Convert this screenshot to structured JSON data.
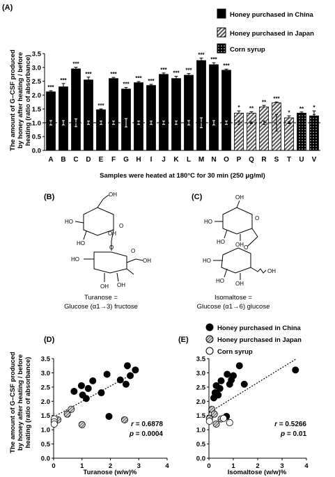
{
  "panels": {
    "a": "(A)",
    "b": "(B)",
    "c": "(C)",
    "d": "(D)",
    "e": "(E)"
  },
  "ylabel_lines": [
    "The amount of G–CSF produced",
    "by honey after heating  / before",
    "heating (ratio of absorbance)"
  ],
  "legend": {
    "china": "Honey purchased in China",
    "japan": "Honey purchased in Japan",
    "corn": "Corn syrup"
  },
  "colors": {
    "china": "#000000",
    "japan": "#c8c8c8",
    "corn": "#ffffff"
  },
  "structures": {
    "turanose_lines": [
      "Turanose =",
      "Glucose (α1→3) fructose"
    ],
    "isomaltose_lines": [
      "Isomaltose =",
      "Glucose (α1→6) glucose"
    ]
  },
  "chart_data": [
    {
      "type": "bar",
      "xlabel": "Samples were heated at 180°C for 30 min (250 μg/ml)",
      "ylabel": "The amount of G–CSF produced by honey after heating  / before heating (ratio of absorbance)",
      "ylim": [
        0,
        3.5
      ],
      "yticks": [
        "0.0",
        "0.5",
        "1.0",
        "1.5",
        "2.0",
        "2.5",
        "3.0",
        "3.5"
      ],
      "reference_line": 1.0,
      "categories": [
        "A",
        "B",
        "C",
        "D",
        "E",
        "F",
        "G",
        "H",
        "I",
        "J",
        "K",
        "L",
        "M",
        "N",
        "O",
        "P",
        "Q",
        "R",
        "S",
        "T",
        "U",
        "V"
      ],
      "groups": [
        "china",
        "china",
        "china",
        "china",
        "china",
        "china",
        "china",
        "china",
        "china",
        "china",
        "china",
        "china",
        "china",
        "china",
        "china",
        "japan",
        "japan",
        "japan",
        "japan",
        "japan",
        "corn",
        "corn"
      ],
      "values": [
        2.12,
        2.3,
        2.95,
        2.55,
        1.47,
        2.6,
        2.22,
        2.45,
        2.35,
        2.75,
        2.6,
        2.72,
        3.25,
        3.1,
        2.9,
        1.35,
        1.35,
        1.57,
        1.72,
        1.18,
        1.35,
        1.25
      ],
      "errors": [
        0.04,
        0.12,
        0.06,
        0.1,
        0.03,
        0.04,
        0.06,
        0.04,
        0.04,
        0.05,
        0.08,
        0.06,
        0.09,
        0.07,
        0.04,
        0.08,
        0.05,
        0.06,
        0.03,
        0.07,
        0.04,
        0.18
      ],
      "control_errors": [
        0.08,
        0.08,
        0.14,
        0.06,
        0.06,
        0.06,
        0.15,
        0.06,
        0.06,
        0.06,
        0.06,
        0.08,
        0.18,
        0.08,
        0.06,
        0.06,
        0.03,
        0.06,
        0.3,
        0.03,
        0.28,
        0.3
      ],
      "significance": [
        "***",
        "***",
        "***",
        "***",
        "***",
        "***",
        "***",
        "***",
        "***",
        "***",
        "***",
        "***",
        "***",
        "***",
        "***",
        "*",
        "**",
        "**",
        "***",
        "*",
        "**",
        "*"
      ]
    },
    {
      "type": "scatter",
      "xlabel": "Turanose (w/w)%",
      "xlim": [
        0,
        4
      ],
      "ylim": [
        0,
        3.5
      ],
      "xticks": [
        "0",
        "1",
        "2",
        "3",
        "4"
      ],
      "yticks": [
        "0.0",
        "0.5",
        "1.0",
        "1.5",
        "2.0",
        "2.5",
        "3.0",
        "3.5"
      ],
      "stats": {
        "r_label": "r",
        "r_value": " = 0.6878",
        "p_label": "p",
        "p_value": " = 0.0004"
      },
      "points": [
        {
          "x": 0.72,
          "y": 2.35,
          "group": "china"
        },
        {
          "x": 0.98,
          "y": 2.55,
          "group": "china"
        },
        {
          "x": 1.02,
          "y": 2.22,
          "group": "china"
        },
        {
          "x": 1.15,
          "y": 2.1,
          "group": "china"
        },
        {
          "x": 1.22,
          "y": 2.45,
          "group": "china"
        },
        {
          "x": 1.38,
          "y": 2.72,
          "group": "china"
        },
        {
          "x": 1.68,
          "y": 2.3,
          "group": "china"
        },
        {
          "x": 1.88,
          "y": 2.95,
          "group": "china"
        },
        {
          "x": 1.95,
          "y": 1.47,
          "group": "china"
        },
        {
          "x": 2.35,
          "y": 2.75,
          "group": "china"
        },
        {
          "x": 2.55,
          "y": 2.6,
          "group": "china"
        },
        {
          "x": 2.6,
          "y": 3.25,
          "group": "china"
        },
        {
          "x": 2.7,
          "y": 2.9,
          "group": "china"
        },
        {
          "x": 2.88,
          "y": 3.1,
          "group": "china"
        },
        {
          "x": 0.15,
          "y": 1.35,
          "group": "japan"
        },
        {
          "x": 0.48,
          "y": 1.55,
          "group": "japan"
        },
        {
          "x": 0.62,
          "y": 1.72,
          "group": "japan"
        },
        {
          "x": 1.0,
          "y": 1.18,
          "group": "japan"
        },
        {
          "x": 2.5,
          "y": 1.35,
          "group": "japan"
        },
        {
          "x": 0.02,
          "y": 1.38,
          "group": "corn"
        },
        {
          "x": 0.02,
          "y": 1.28,
          "group": "corn"
        },
        {
          "x": 0.02,
          "y": 1.2,
          "group": "corn"
        }
      ],
      "trendline": [
        [
          0,
          1.45
        ],
        [
          2.95,
          3.05
        ]
      ]
    },
    {
      "type": "scatter",
      "xlabel": "Isomaltose (w/w)%",
      "xlim": [
        0,
        4
      ],
      "ylim": [
        0,
        3.5
      ],
      "xticks": [
        "0",
        "1",
        "2",
        "3",
        "4"
      ],
      "yticks": [
        "0.0",
        "0.5",
        "1.0",
        "1.5",
        "2.0",
        "2.5",
        "3.0",
        "3.5"
      ],
      "stats": {
        "r_label": "r",
        "r_value": " = 0.5266",
        "p_label": "p",
        "p_value": " = 0.01"
      },
      "points": [
        {
          "x": 0.2,
          "y": 2.12,
          "group": "china"
        },
        {
          "x": 0.25,
          "y": 2.3,
          "group": "china"
        },
        {
          "x": 0.3,
          "y": 2.55,
          "group": "china"
        },
        {
          "x": 0.38,
          "y": 2.22,
          "group": "china"
        },
        {
          "x": 0.45,
          "y": 2.45,
          "group": "china"
        },
        {
          "x": 0.5,
          "y": 2.72,
          "group": "china"
        },
        {
          "x": 0.72,
          "y": 1.47,
          "group": "china"
        },
        {
          "x": 0.75,
          "y": 2.95,
          "group": "china"
        },
        {
          "x": 0.85,
          "y": 2.6,
          "group": "china"
        },
        {
          "x": 0.92,
          "y": 2.75,
          "group": "china"
        },
        {
          "x": 1.0,
          "y": 2.9,
          "group": "china"
        },
        {
          "x": 1.25,
          "y": 3.25,
          "group": "china"
        },
        {
          "x": 1.45,
          "y": 2.6,
          "group": "china"
        },
        {
          "x": 3.55,
          "y": 3.1,
          "group": "china"
        },
        {
          "x": 0.02,
          "y": 1.4,
          "group": "japan"
        },
        {
          "x": 0.12,
          "y": 1.72,
          "group": "japan"
        },
        {
          "x": 0.22,
          "y": 1.55,
          "group": "japan"
        },
        {
          "x": 0.3,
          "y": 1.2,
          "group": "japan"
        },
        {
          "x": 0.5,
          "y": 1.38,
          "group": "japan"
        },
        {
          "x": 0.02,
          "y": 1.3,
          "group": "corn"
        },
        {
          "x": 0.6,
          "y": 1.4,
          "group": "corn"
        },
        {
          "x": 0.85,
          "y": 1.25,
          "group": "corn"
        }
      ],
      "trendline": [
        [
          0,
          1.6
        ],
        [
          3.6,
          3.5
        ]
      ]
    }
  ]
}
